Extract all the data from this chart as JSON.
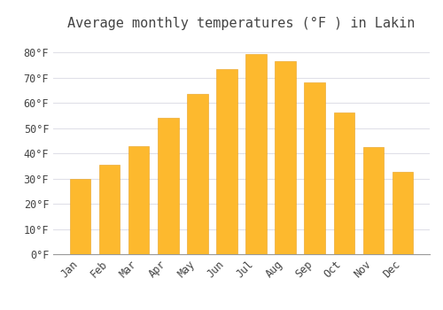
{
  "title": "Average monthly temperatures (°F ) in Lakin",
  "months": [
    "Jan",
    "Feb",
    "Mar",
    "Apr",
    "May",
    "Jun",
    "Jul",
    "Aug",
    "Sep",
    "Oct",
    "Nov",
    "Dec"
  ],
  "values": [
    30,
    35.5,
    43,
    54,
    63.5,
    73.5,
    79.5,
    76.5,
    68,
    56,
    42.5,
    32.5
  ],
  "bar_color_top": "#FDB92E",
  "bar_color_bottom": "#F5A800",
  "bar_edge_color": "#E8A020",
  "background_color": "#FFFFFF",
  "grid_color": "#E0E0E8",
  "text_color": "#444444",
  "ylim": [
    0,
    86
  ],
  "yticks": [
    0,
    10,
    20,
    30,
    40,
    50,
    60,
    70,
    80
  ],
  "title_fontsize": 11,
  "tick_fontsize": 8.5,
  "font_family": "monospace"
}
